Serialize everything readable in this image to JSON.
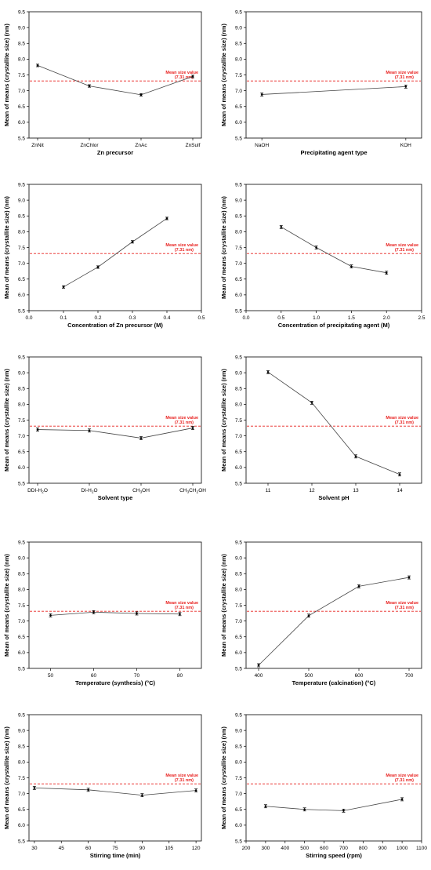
{
  "figure": {
    "mean": {
      "value": 7.31,
      "label_line1": "Mean size value",
      "label_line2": "(7.31 nm)",
      "color": "#e8211f"
    },
    "line_color": "#444444"
  },
  "chart_data": [
    {
      "type": "line",
      "xlabel": "Zn precursor",
      "ylabel": "Mean of means (crystallite size) (nm)",
      "ylim": [
        5.5,
        9.5
      ],
      "y_ticks": [
        "5.5",
        "6.0",
        "6.5",
        "7.0",
        "7.5",
        "8.0",
        "8.5",
        "9.0",
        "9.5"
      ],
      "x_categorical": true,
      "categories": [
        {
          "text": "ZnNit"
        },
        {
          "text": "ZnChlor"
        },
        {
          "text": "ZnAc"
        },
        {
          "text": "ZnSulf"
        }
      ],
      "values": [
        7.8,
        7.15,
        6.87,
        7.45
      ],
      "errors": [
        0.04,
        0.04,
        0.04,
        0.04
      ]
    },
    {
      "type": "line",
      "xlabel": "Precipitating agent type",
      "ylabel": "Mean of means (crystallite size) (nm)",
      "ylim": [
        5.5,
        9.5
      ],
      "y_ticks": [
        "5.5",
        "6.0",
        "6.5",
        "7.0",
        "7.5",
        "8.0",
        "8.5",
        "9.0",
        "9.5"
      ],
      "x_categorical": true,
      "categories": [
        {
          "text": "NaOH"
        },
        {
          "text": "KOH"
        }
      ],
      "values": [
        6.88,
        7.13
      ],
      "errors": [
        0.05,
        0.05
      ]
    },
    {
      "type": "line",
      "xlabel": "Concentration of Zn precursor (M)",
      "ylabel": "Mean of means (crystallite size) (nm)",
      "ylim": [
        5.5,
        9.5
      ],
      "y_ticks": [
        "5.5",
        "6.0",
        "6.5",
        "7.0",
        "7.5",
        "8.0",
        "8.5",
        "9.0",
        "9.5"
      ],
      "xlim": [
        0.0,
        0.5
      ],
      "x_ticks": [
        "0.0",
        "0.1",
        "0.2",
        "0.3",
        "0.4",
        "0.5"
      ],
      "x": [
        0.1,
        0.2,
        0.3,
        0.4
      ],
      "values": [
        6.25,
        6.88,
        7.68,
        8.42
      ],
      "errors": [
        0.04,
        0.04,
        0.04,
        0.04
      ]
    },
    {
      "type": "line",
      "xlabel": "Concentration of precipitating agent (M)",
      "ylabel": "Mean of means (crystallite size) (nm)",
      "ylim": [
        5.5,
        9.5
      ],
      "y_ticks": [
        "5.5",
        "6.0",
        "6.5",
        "7.0",
        "7.5",
        "8.0",
        "8.5",
        "9.0",
        "9.5"
      ],
      "xlim": [
        0.0,
        2.5
      ],
      "x_ticks": [
        "0.0",
        "0.5",
        "1.0",
        "1.5",
        "2.0",
        "2.5"
      ],
      "x": [
        0.5,
        1.0,
        1.5,
        2.0
      ],
      "values": [
        8.15,
        7.5,
        6.9,
        6.7
      ],
      "errors": [
        0.05,
        0.05,
        0.05,
        0.05
      ]
    },
    {
      "type": "line",
      "xlabel": "Solvent type",
      "ylabel": "Mean of means (crystallite size) (nm)",
      "ylim": [
        5.5,
        9.5
      ],
      "y_ticks": [
        "5.5",
        "6.0",
        "6.5",
        "7.0",
        "7.5",
        "8.0",
        "8.5",
        "9.0",
        "9.5"
      ],
      "x_categorical": true,
      "categories": [
        {
          "text": "DDI-H",
          "sub": "2",
          "post": "O"
        },
        {
          "text": "DI-H",
          "sub": "2",
          "post": "O"
        },
        {
          "text": "CH",
          "sub": "3",
          "post": "OH"
        },
        {
          "text": "CH",
          "sub": "3",
          "post": "CH",
          "sub2": "2",
          "post2": "OH"
        }
      ],
      "values": [
        7.2,
        7.17,
        6.93,
        7.25
      ],
      "errors": [
        0.05,
        0.05,
        0.05,
        0.05
      ]
    },
    {
      "type": "line",
      "xlabel": "Solvent pH",
      "ylabel": "Mean of means (crystallite size) (nm)",
      "ylim": [
        5.5,
        9.5
      ],
      "y_ticks": [
        "5.5",
        "6.0",
        "6.5",
        "7.0",
        "7.5",
        "8.0",
        "8.5",
        "9.0",
        "9.5"
      ],
      "xlim": [
        10.5,
        14.5
      ],
      "x_ticks": [
        "11",
        "12",
        "13",
        "14"
      ],
      "x_tick_values": [
        11,
        12,
        13,
        14
      ],
      "x": [
        11,
        12,
        13,
        14
      ],
      "values": [
        9.02,
        8.05,
        6.35,
        5.78
      ],
      "errors": [
        0.05,
        0.05,
        0.05,
        0.05
      ]
    },
    {
      "type": "line",
      "xlabel": "Temperature (synthesis) (°C)",
      "ylabel": "Mean of means (crystallite size) (nm)",
      "ylim": [
        5.5,
        9.5
      ],
      "y_ticks": [
        "5.5",
        "6.0",
        "6.5",
        "7.0",
        "7.5",
        "8.0",
        "8.5",
        "9.0",
        "9.5"
      ],
      "xlim": [
        45,
        85
      ],
      "x_ticks": [
        "50",
        "60",
        "70",
        "80"
      ],
      "x_tick_values": [
        50,
        60,
        70,
        80
      ],
      "x": [
        50,
        60,
        70,
        80
      ],
      "values": [
        7.18,
        7.28,
        7.24,
        7.22
      ],
      "errors": [
        0.05,
        0.05,
        0.05,
        0.05
      ]
    },
    {
      "type": "line",
      "xlabel": "Temperature (calcination) (°C)",
      "ylabel": "Mean of means (crystallite size) (nm)",
      "ylim": [
        5.5,
        9.5
      ],
      "y_ticks": [
        "5.5",
        "6.0",
        "6.5",
        "7.0",
        "7.5",
        "8.0",
        "8.5",
        "9.0",
        "9.5"
      ],
      "xlim": [
        375,
        725
      ],
      "x_ticks": [
        "400",
        "500",
        "600",
        "700"
      ],
      "x_tick_values": [
        400,
        500,
        600,
        700
      ],
      "x": [
        400,
        500,
        600,
        700
      ],
      "values": [
        5.6,
        7.17,
        8.1,
        8.38
      ],
      "errors": [
        0.05,
        0.05,
        0.05,
        0.05
      ]
    },
    {
      "type": "line",
      "xlabel": "Stirring time (min)",
      "ylabel": "Mean of means (crystallite size) (nm)",
      "ylim": [
        5.5,
        9.5
      ],
      "y_ticks": [
        "5.5",
        "6.0",
        "6.5",
        "7.0",
        "7.5",
        "8.0",
        "8.5",
        "9.0",
        "9.5"
      ],
      "xlim": [
        27,
        123
      ],
      "x_ticks": [
        "30",
        "45",
        "60",
        "75",
        "90",
        "105",
        "120"
      ],
      "x_tick_values": [
        30,
        45,
        60,
        75,
        90,
        105,
        120
      ],
      "x": [
        30,
        60,
        90,
        120
      ],
      "values": [
        7.18,
        7.12,
        6.95,
        7.1
      ],
      "errors": [
        0.05,
        0.05,
        0.05,
        0.05
      ]
    },
    {
      "type": "line",
      "xlabel": "Stirring speed (rpm)",
      "ylabel": "Mean of means (crystallite size) (nm)",
      "ylim": [
        5.5,
        9.5
      ],
      "y_ticks": [
        "5.5",
        "6.0",
        "6.5",
        "7.0",
        "7.5",
        "8.0",
        "8.5",
        "9.0",
        "9.5"
      ],
      "xlim": [
        200,
        1100
      ],
      "x_ticks": [
        "200",
        "300",
        "400",
        "500",
        "600",
        "700",
        "800",
        "900",
        "1000",
        "1100"
      ],
      "x_tick_values": [
        200,
        300,
        400,
        500,
        600,
        700,
        800,
        900,
        1000,
        1100
      ],
      "x": [
        300,
        500,
        700,
        1000
      ],
      "values": [
        6.6,
        6.5,
        6.46,
        6.82
      ],
      "errors": [
        0.05,
        0.05,
        0.05,
        0.05
      ]
    }
  ]
}
